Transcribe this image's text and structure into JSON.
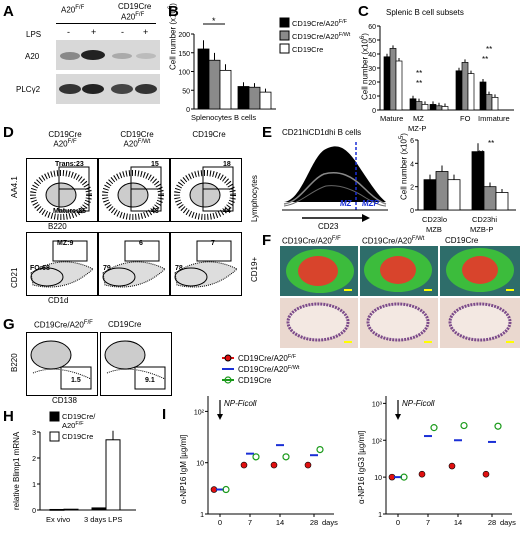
{
  "panels": {
    "A": {
      "letter": "A",
      "cols": [
        "A20",
        "CD19Cre",
        "A20"
      ],
      "sup_ff": "F/F",
      "lps_label": "LPS",
      "lps_marks": [
        "-",
        "+",
        "-",
        "+"
      ],
      "bands": [
        "A20",
        "PLCγ2"
      ]
    },
    "B": {
      "letter": "B",
      "ylabel": "Cell number (x10",
      "ylabel_exp": "6",
      "yticks": [
        "0",
        "50",
        "100",
        "150",
        "200"
      ],
      "groups": [
        "Splenocytes",
        "B cells"
      ],
      "star": "*",
      "legend": [
        "CD19Cre/A20",
        "CD19Cre/A20",
        "CD19Cre"
      ],
      "legend_sup": [
        "F/F",
        "F/Wt",
        ""
      ]
    },
    "C": {
      "letter": "C",
      "title": "Splenic B cell subsets",
      "ylabel": "Cell number (x10",
      "ylabel_exp": "6",
      "yticks": [
        "0",
        "10",
        "20",
        "30",
        "40",
        "50",
        "60"
      ],
      "groups": [
        "Mature",
        "MZ",
        "FO",
        "Immature"
      ],
      "sub": "MZ-P",
      "stars": "**"
    },
    "D": {
      "letter": "D",
      "cols": [
        "CD19Cre",
        "CD19Cre",
        "CD19Cre"
      ],
      "col_sub": [
        "A20",
        "A20",
        ""
      ],
      "col_sup": [
        "F/F",
        "F/Wt",
        ""
      ],
      "row1_y": "AA4.1",
      "row1_x": "B220",
      "row1_side": "Lymphocytes",
      "row1_gates": [
        "Trans:23",
        "Mature:25",
        "15",
        "43",
        "18",
        "44"
      ],
      "row2_y": "CD21",
      "row2_x": "CD1d",
      "row2_side": "CD19+",
      "row2_gates": [
        "MZ:9",
        "FO:68",
        "6",
        "79",
        "7",
        "78"
      ]
    },
    "E": {
      "letter": "E",
      "title": "CD21hiCD1dhi B cells",
      "xaxis": "CD23",
      "mz": "MZ",
      "mzp": "MZP",
      "ylabel": "Cell number (x10",
      "ylabel_exp": "5",
      "yticks": [
        "0",
        "2",
        "4",
        "6"
      ],
      "groups": [
        "CD23lo",
        "CD23hi"
      ],
      "groups_sub": [
        "MZB",
        "MZB-P"
      ],
      "stars": "**"
    },
    "F": {
      "letter": "F",
      "cols": [
        "CD19Cre/A20",
        "CD19Cre/A20",
        "CD19Cre"
      ],
      "col_sup": [
        "F/F",
        "F/Wt",
        ""
      ]
    },
    "G": {
      "letter": "G",
      "cols": [
        "CD19Cre/A20",
        "CD19Cre"
      ],
      "col_sup": [
        "F/F",
        ""
      ],
      "yaxis": "B220",
      "xaxis": "CD138",
      "gates": [
        "1.5",
        "9.1"
      ]
    },
    "H": {
      "letter": "H",
      "ylabel": "relative Blimp1 mRNA",
      "yticks": [
        "0",
        "1",
        "2",
        "3"
      ],
      "groups": [
        "Ex vivo",
        "3 days LPS"
      ],
      "legend": [
        "CD19Cre/",
        "A20",
        "CD19Cre"
      ],
      "legend_sup": "F/F"
    },
    "I": {
      "letter": "I",
      "legend": [
        "CD19Cre/A20",
        "CD19Cre/A20",
        "CD19Cre"
      ],
      "legend_sup": [
        "F/F",
        "F/Wt",
        ""
      ],
      "arrow_label": "NP-Ficoll",
      "left_ylabel": "α-NP16 IgM [µg/ml]",
      "right_ylabel": "α-NP16 IgG3 [µg/ml]",
      "left_yticks": [
        "1",
        "10",
        "10²"
      ],
      "right_yticks": [
        "1",
        "10",
        "10²",
        "10³"
      ],
      "xticks": [
        "0",
        "7",
        "14",
        "28"
      ],
      "xunit": "days"
    }
  },
  "colors": {
    "black": "#000000",
    "grey": "#8a8a8a",
    "white": "#ffffff",
    "red": "#e01010",
    "blue": "#1a2fd6",
    "green": "#1a9a1a"
  },
  "chart_data": [
    {
      "type": "bar",
      "panel": "B",
      "categories": [
        "Splenocytes",
        "B cells"
      ],
      "series": [
        {
          "name": "CD19Cre/A20F/F",
          "values": [
            160,
            60
          ]
        },
        {
          "name": "CD19Cre/A20F/Wt",
          "values": [
            130,
            58
          ]
        },
        {
          "name": "CD19Cre",
          "values": [
            103,
            45
          ]
        }
      ],
      "ylim": [
        0,
        200
      ]
    },
    {
      "type": "bar",
      "panel": "C",
      "title": "Splenic B cell subsets",
      "categories": [
        "Mature",
        "MZ",
        "MZ-P",
        "FO",
        "Immature"
      ],
      "series": [
        {
          "name": "CD19Cre/A20F/F",
          "values": [
            38,
            8,
            4,
            28,
            20
          ]
        },
        {
          "name": "CD19Cre/A20F/Wt",
          "values": [
            44,
            6,
            3,
            34,
            11
          ]
        },
        {
          "name": "CD19Cre",
          "values": [
            35,
            4,
            2.5,
            26,
            9
          ]
        }
      ],
      "ylim": [
        0,
        60
      ]
    },
    {
      "type": "bar",
      "panel": "E",
      "categories": [
        "CD23lo MZB",
        "CD23hi MZB-P"
      ],
      "series": [
        {
          "name": "CD19Cre/A20F/F",
          "values": [
            2.6,
            5.0
          ]
        },
        {
          "name": "CD19Cre/A20F/Wt",
          "values": [
            3.3,
            2.0
          ]
        },
        {
          "name": "CD19Cre",
          "values": [
            2.6,
            1.5
          ]
        }
      ],
      "ylim": [
        0,
        6
      ]
    },
    {
      "type": "bar",
      "panel": "H",
      "categories": [
        "Ex vivo",
        "3 days LPS"
      ],
      "series": [
        {
          "name": "CD19Cre/A20F/F",
          "values": [
            0.02,
            0.08
          ]
        },
        {
          "name": "CD19Cre",
          "values": [
            0.03,
            2.7
          ]
        }
      ],
      "ylim": [
        0,
        3
      ]
    },
    {
      "type": "scatter",
      "panel": "I-left",
      "x": [
        0,
        7,
        14,
        28
      ],
      "series": [
        {
          "name": "CD19Cre/A20F/F",
          "values": [
            3,
            9,
            9,
            9
          ]
        },
        {
          "name": "CD19Cre/A20F/Wt",
          "values": [
            3,
            15,
            22,
            14
          ]
        },
        {
          "name": "CD19Cre",
          "values": [
            3,
            13,
            13,
            18
          ]
        }
      ],
      "ylog": true
    },
    {
      "type": "scatter",
      "panel": "I-right",
      "x": [
        0,
        7,
        14,
        28
      ],
      "series": [
        {
          "name": "CD19Cre/A20F/F",
          "values": [
            10,
            12,
            20,
            12
          ]
        },
        {
          "name": "CD19Cre/A20F/Wt",
          "values": [
            10,
            130,
            100,
            90
          ]
        },
        {
          "name": "CD19Cre",
          "values": [
            10,
            220,
            250,
            240
          ]
        }
      ],
      "ylog": true
    }
  ]
}
